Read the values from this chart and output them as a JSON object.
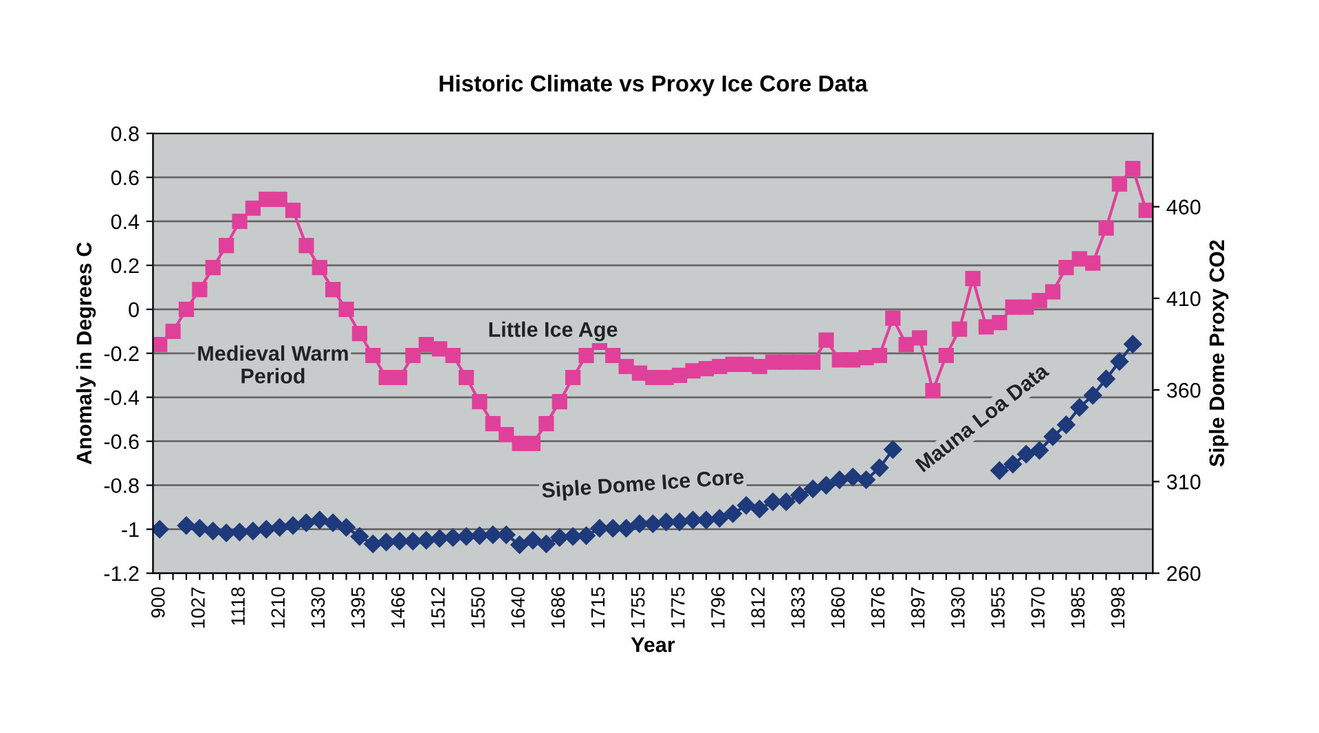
{
  "chart_data": {
    "type": "line",
    "title": "Historic Climate vs Proxy Ice Core Data",
    "xlabel": "Year",
    "ylabel": "Anomaly in Degrees C",
    "y2label": "Siple Dome Proxy CO2",
    "categories": [
      "900",
      null,
      null,
      "1027",
      null,
      null,
      "1118",
      null,
      null,
      "1210",
      null,
      null,
      "1330",
      null,
      null,
      "1395",
      null,
      null,
      "1466",
      null,
      null,
      "1512",
      null,
      null,
      "1550",
      null,
      null,
      "1640",
      null,
      null,
      "1686",
      null,
      null,
      "1715",
      null,
      null,
      "1755",
      null,
      null,
      "1775",
      null,
      null,
      "1796",
      null,
      null,
      "1812",
      null,
      null,
      "1833",
      null,
      null,
      "1860",
      null,
      null,
      "1876",
      null,
      null,
      "1897",
      null,
      null,
      "1930",
      null,
      null,
      "1955",
      null,
      null,
      "1970",
      null,
      null,
      "1985",
      null,
      null,
      "1998",
      null,
      null
    ],
    "series": [
      {
        "color": "#e0409a",
        "marker": "square",
        "values": [
          -0.16,
          -0.1,
          0.0,
          0.09,
          0.19,
          0.29,
          0.4,
          0.46,
          0.5,
          0.5,
          0.45,
          0.29,
          0.19,
          0.09,
          0.0,
          -0.11,
          -0.21,
          -0.31,
          -0.31,
          -0.21,
          -0.16,
          -0.18,
          -0.21,
          -0.31,
          -0.42,
          -0.52,
          -0.57,
          -0.61,
          -0.61,
          -0.52,
          -0.42,
          -0.31,
          -0.21,
          -0.15,
          -0.21,
          -0.26,
          -0.29,
          -0.31,
          -0.31,
          -0.3,
          -0.28,
          -0.27,
          -0.26,
          -0.25,
          -0.25,
          -0.26,
          -0.24,
          -0.24,
          -0.24,
          -0.24,
          -0.14,
          -0.23,
          -0.23,
          -0.22,
          -0.21,
          -0.04,
          -0.16,
          -0.13,
          -0.37,
          -0.21,
          -0.09,
          0.14,
          -0.08,
          -0.06,
          0.01,
          0.01,
          0.04,
          0.08,
          0.19,
          0.23,
          0.21,
          0.37,
          0.57,
          0.64,
          0.45
        ]
      },
      {
        "color": "#1f3a7a",
        "marker": "diamond",
        "axis": "y2",
        "values": [
          284,
          null,
          286,
          284.5,
          283,
          282,
          282.5,
          283,
          284,
          285,
          286,
          287.5,
          289,
          287.5,
          285,
          280,
          276,
          277,
          277.5,
          277.5,
          278,
          279,
          279.5,
          280,
          280.5,
          281,
          281,
          275.5,
          278,
          276,
          279.5,
          280,
          280.5,
          284.5,
          284.5,
          284.5,
          287,
          287,
          288,
          288,
          289,
          289,
          290,
          292.5,
          297,
          295,
          299,
          299,
          302.5,
          306,
          308,
          311,
          312.5,
          311,
          317.5,
          327.5,
          null,
          null,
          null,
          null,
          null,
          null,
          null,
          316,
          319.5,
          325,
          327,
          334.5,
          341,
          350.5,
          357,
          366,
          375.5,
          385,
          null
        ]
      }
    ],
    "ylim": [
      -1.2,
      0.8
    ],
    "yticks": [
      -1.2,
      -1,
      -0.8,
      -0.6,
      -0.4,
      -0.2,
      0,
      0.2,
      0.4,
      0.6,
      0.8
    ],
    "y2lim": [
      260,
      500
    ],
    "y2ticks": [
      260,
      310,
      360,
      410,
      460
    ],
    "grid": "y",
    "legend": false,
    "line_style": "solid",
    "annotations": [
      "Medieval Warm\nPeriod",
      "Little Ice Age",
      "Siple Dome Ice Core",
      "Mauna Loa Data"
    ]
  }
}
